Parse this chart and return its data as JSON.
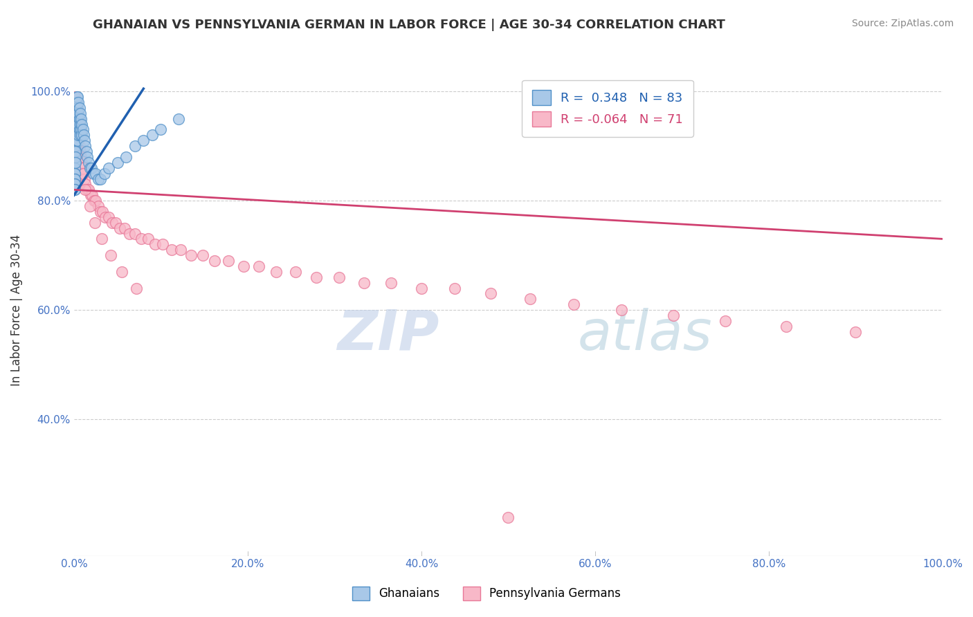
{
  "title": "GHANAIAN VS PENNSYLVANIA GERMAN IN LABOR FORCE | AGE 30-34 CORRELATION CHART",
  "source": "Source: ZipAtlas.com",
  "ylabel": "In Labor Force | Age 30-34",
  "xlim": [
    0.0,
    1.0
  ],
  "ylim": [
    0.15,
    1.05
  ],
  "x_ticks": [
    0.0,
    0.2,
    0.4,
    0.6,
    0.8,
    1.0
  ],
  "y_ticks": [
    0.4,
    0.6,
    0.8,
    1.0
  ],
  "y_tick_labels": [
    "40.0%",
    "60.0%",
    "80.0%",
    "100.0%"
  ],
  "x_tick_labels": [
    "0.0%",
    "20.0%",
    "40.0%",
    "60.0%",
    "80.0%",
    "100.0%"
  ],
  "blue_R": 0.348,
  "blue_N": 83,
  "pink_R": -0.064,
  "pink_N": 71,
  "blue_color": "#a8c8e8",
  "blue_edge": "#5090c8",
  "pink_color": "#f8b8c8",
  "pink_edge": "#e87898",
  "blue_line_color": "#2060b0",
  "pink_line_color": "#d04070",
  "legend_label_blue": "Ghanaians",
  "legend_label_pink": "Pennsylvania Germans",
  "watermark_zip": "ZIP",
  "watermark_atlas": "atlas",
  "background_color": "#ffffff",
  "grid_color": "#cccccc",
  "blue_x": [
    0.001,
    0.001,
    0.001,
    0.001,
    0.001,
    0.001,
    0.001,
    0.001,
    0.001,
    0.001,
    0.001,
    0.001,
    0.001,
    0.001,
    0.001,
    0.001,
    0.001,
    0.001,
    0.001,
    0.001,
    0.001,
    0.002,
    0.002,
    0.002,
    0.002,
    0.002,
    0.002,
    0.002,
    0.002,
    0.002,
    0.002,
    0.002,
    0.002,
    0.003,
    0.003,
    0.003,
    0.003,
    0.003,
    0.003,
    0.003,
    0.003,
    0.003,
    0.004,
    0.004,
    0.004,
    0.004,
    0.004,
    0.005,
    0.005,
    0.005,
    0.005,
    0.006,
    0.006,
    0.006,
    0.007,
    0.007,
    0.007,
    0.008,
    0.008,
    0.009,
    0.009,
    0.01,
    0.011,
    0.012,
    0.013,
    0.014,
    0.015,
    0.017,
    0.018,
    0.02,
    0.022,
    0.025,
    0.028,
    0.03,
    0.035,
    0.04,
    0.05,
    0.06,
    0.07,
    0.08,
    0.09,
    0.1,
    0.12
  ],
  "blue_y": [
    0.97,
    0.96,
    0.95,
    0.94,
    0.93,
    0.92,
    0.91,
    0.9,
    0.89,
    0.88,
    0.87,
    0.87,
    0.86,
    0.85,
    0.85,
    0.84,
    0.84,
    0.83,
    0.83,
    0.82,
    0.82,
    0.98,
    0.97,
    0.96,
    0.95,
    0.94,
    0.93,
    0.92,
    0.91,
    0.9,
    0.89,
    0.88,
    0.87,
    0.99,
    0.98,
    0.97,
    0.96,
    0.95,
    0.94,
    0.93,
    0.92,
    0.91,
    0.99,
    0.97,
    0.95,
    0.93,
    0.91,
    0.98,
    0.96,
    0.94,
    0.92,
    0.97,
    0.95,
    0.93,
    0.96,
    0.94,
    0.92,
    0.95,
    0.93,
    0.94,
    0.92,
    0.93,
    0.92,
    0.91,
    0.9,
    0.89,
    0.88,
    0.87,
    0.86,
    0.86,
    0.85,
    0.85,
    0.84,
    0.84,
    0.85,
    0.86,
    0.87,
    0.88,
    0.9,
    0.91,
    0.92,
    0.93,
    0.95
  ],
  "pink_x": [
    0.001,
    0.002,
    0.003,
    0.004,
    0.005,
    0.006,
    0.007,
    0.008,
    0.009,
    0.01,
    0.011,
    0.012,
    0.013,
    0.015,
    0.017,
    0.019,
    0.021,
    0.023,
    0.025,
    0.028,
    0.03,
    0.033,
    0.036,
    0.04,
    0.044,
    0.048,
    0.053,
    0.058,
    0.064,
    0.07,
    0.077,
    0.085,
    0.093,
    0.102,
    0.112,
    0.123,
    0.135,
    0.148,
    0.162,
    0.178,
    0.195,
    0.213,
    0.233,
    0.255,
    0.279,
    0.305,
    0.334,
    0.365,
    0.4,
    0.438,
    0.48,
    0.525,
    0.575,
    0.63,
    0.69,
    0.75,
    0.82,
    0.9,
    0.002,
    0.003,
    0.005,
    0.007,
    0.01,
    0.013,
    0.018,
    0.024,
    0.032,
    0.042,
    0.055,
    0.072,
    0.5
  ],
  "pink_y": [
    0.99,
    0.97,
    0.95,
    0.93,
    0.91,
    0.9,
    0.89,
    0.88,
    0.87,
    0.86,
    0.85,
    0.84,
    0.83,
    0.82,
    0.82,
    0.81,
    0.81,
    0.8,
    0.8,
    0.79,
    0.78,
    0.78,
    0.77,
    0.77,
    0.76,
    0.76,
    0.75,
    0.75,
    0.74,
    0.74,
    0.73,
    0.73,
    0.72,
    0.72,
    0.71,
    0.71,
    0.7,
    0.7,
    0.69,
    0.69,
    0.68,
    0.68,
    0.67,
    0.67,
    0.66,
    0.66,
    0.65,
    0.65,
    0.64,
    0.64,
    0.63,
    0.62,
    0.61,
    0.6,
    0.59,
    0.58,
    0.57,
    0.56,
    0.96,
    0.94,
    0.91,
    0.88,
    0.85,
    0.82,
    0.79,
    0.76,
    0.73,
    0.7,
    0.67,
    0.64,
    0.22
  ],
  "pink_line_x0": 0.0,
  "pink_line_x1": 1.0,
  "pink_line_y0": 0.82,
  "pink_line_y1": 0.73,
  "blue_line_x0": 0.0,
  "blue_line_x1": 0.08,
  "blue_line_y0": 0.81,
  "blue_line_y1": 1.005
}
